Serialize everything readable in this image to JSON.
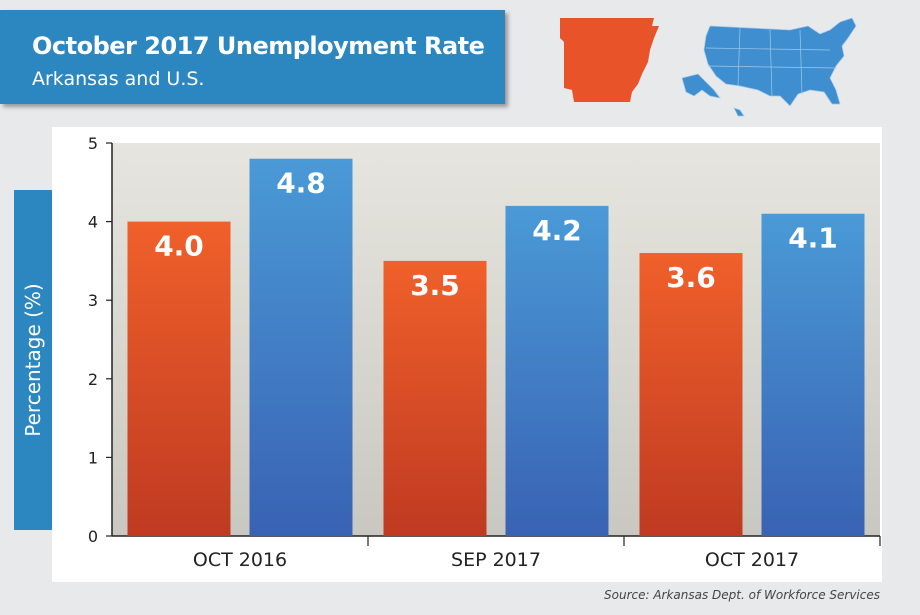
{
  "header": {
    "title": "October 2017 Unemployment Rate",
    "subtitle": "Arkansas and U.S."
  },
  "icons": {
    "arkansas": "arkansas-map-icon",
    "usa": "us-map-icon"
  },
  "source": "Source: Arkansas Dept. of Workforce Services",
  "colors": {
    "arkansas": "#e8532a",
    "us": "#3f8fd0",
    "header": "#2c86bf"
  },
  "chart_data": {
    "type": "bar",
    "categories": [
      "OCT 2016",
      "SEP 2017",
      "OCT 2017"
    ],
    "series": [
      {
        "values": [
          4.0,
          3.5,
          3.6
        ],
        "labels": [
          "4.0",
          "3.5",
          "3.6"
        ]
      },
      {
        "values": [
          4.8,
          4.2,
          4.1
        ],
        "labels": [
          "4.8",
          "4.2",
          "4.1"
        ]
      }
    ],
    "title": "October 2017 Unemployment Rate",
    "subtitle": "Arkansas and U.S.",
    "ylabel": "Percentage (%)",
    "xlabel": "",
    "ylim": [
      0,
      5
    ],
    "yticks": [
      "0",
      "1",
      "2",
      "3",
      "4",
      "5"
    ],
    "grid": false,
    "legend": "none"
  }
}
